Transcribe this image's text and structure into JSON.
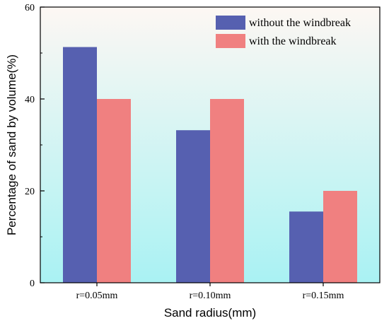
{
  "chart_data": {
    "type": "bar",
    "categories": [
      "r=0.05mm",
      "r=0.10mm",
      "r=0.15mm"
    ],
    "series": [
      {
        "name": "without the windbreak",
        "values": [
          51.3,
          33.2,
          15.5
        ],
        "color": "#5660b0"
      },
      {
        "name": "with the windbreak",
        "values": [
          40,
          40,
          20
        ],
        "color": "#f08080"
      }
    ],
    "xlabel": "Sand radius(mm)",
    "ylabel": "Percentage of sand by volume(%)",
    "ylim": [
      0,
      60
    ],
    "yticks": [
      "0",
      "20",
      "40",
      "60"
    ],
    "legend_position": "top-right",
    "grid": false,
    "background_gradient": [
      "#fdf7f3",
      "#a9f2f3"
    ]
  }
}
